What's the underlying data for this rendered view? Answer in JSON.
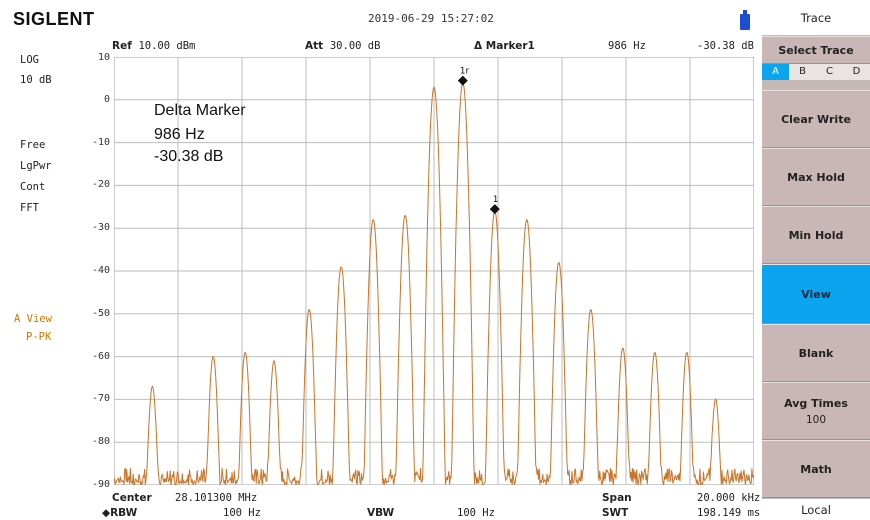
{
  "header": {
    "brand": "SIGLENT",
    "datetime": "2019-06-29  15:27:02",
    "usb_icon": "usb-icon"
  },
  "info": {
    "ref_label": "Ref",
    "ref_value": "10.00 dBm",
    "att_label": "Att",
    "att_value": "30.00 dB",
    "marker_label": "Δ Marker1",
    "marker_freq": "986 Hz",
    "marker_level": "-30.38 dB"
  },
  "left_status": {
    "scale": "LOG",
    "scale_div": "10 dB",
    "free": "Free",
    "lgpwr": "LgPwr",
    "cont": "Cont",
    "fft": "FFT",
    "view": "A View",
    "detector": "P-PK"
  },
  "annotation": {
    "line1": "Delta Marker",
    "line2": "986 Hz",
    "line3": "-30.38 dB"
  },
  "markers": {
    "ref_label": "1r",
    "delta_label": "1"
  },
  "bottom": {
    "center_label": "Center",
    "center_value": "28.101300 MHz",
    "span_label": "Span",
    "span_value": "20.000 kHz",
    "rbw_label": "◆RBW",
    "rbw_value": "100 Hz",
    "vbw_label": "VBW",
    "vbw_value": "100 Hz",
    "swt_label": "SWT",
    "swt_value": "198.149 ms"
  },
  "panel": {
    "title": "Trace",
    "select_trace": "Select Trace",
    "traces": [
      "A",
      "B",
      "C",
      "D"
    ],
    "active_trace": "A",
    "buttons": [
      {
        "label": "Clear Write",
        "sub": ""
      },
      {
        "label": "Max Hold",
        "sub": ""
      },
      {
        "label": "Min Hold",
        "sub": ""
      },
      {
        "label": "View",
        "sub": "",
        "active": true
      },
      {
        "label": "Blank",
        "sub": ""
      },
      {
        "label": "Avg Times",
        "sub": "100"
      },
      {
        "label": "Math",
        "sub": ""
      }
    ],
    "local": "Local"
  },
  "colors": {
    "trace": "#c8742a",
    "grid": "#bdbdbd",
    "active": "#0aa5ee",
    "panel": "#c9b6b6"
  },
  "chart_data": {
    "type": "line",
    "y_ticks": [
      "10",
      "0",
      "-10",
      "-20",
      "-30",
      "-40",
      "-50",
      "-60",
      "-70",
      "-80",
      "-90"
    ],
    "ylim": [
      -90,
      10
    ],
    "xlim_kHz": [
      -10,
      10
    ],
    "grid": true,
    "peaks": [
      {
        "x": -8.8,
        "y": -67
      },
      {
        "x": -6.9,
        "y": -60
      },
      {
        "x": -5.9,
        "y": -59
      },
      {
        "x": -5.0,
        "y": -61
      },
      {
        "x": -3.9,
        "y": -49
      },
      {
        "x": -2.9,
        "y": -39
      },
      {
        "x": -1.9,
        "y": -28
      },
      {
        "x": -0.9,
        "y": -27
      },
      {
        "x": 0.0,
        "y": 3
      },
      {
        "x": 0.9,
        "y": 4
      },
      {
        "x": 1.9,
        "y": -26
      },
      {
        "x": 2.9,
        "y": -28
      },
      {
        "x": 3.9,
        "y": -38
      },
      {
        "x": 4.9,
        "y": -49
      },
      {
        "x": 5.9,
        "y": -58
      },
      {
        "x": 6.9,
        "y": -59
      },
      {
        "x": 7.9,
        "y": -59
      },
      {
        "x": 8.8,
        "y": -70
      }
    ],
    "noise_floor": -89,
    "marker_ref": {
      "x": 0.9,
      "y": 4
    },
    "marker_delta": {
      "x": 1.9,
      "y": -26
    }
  }
}
